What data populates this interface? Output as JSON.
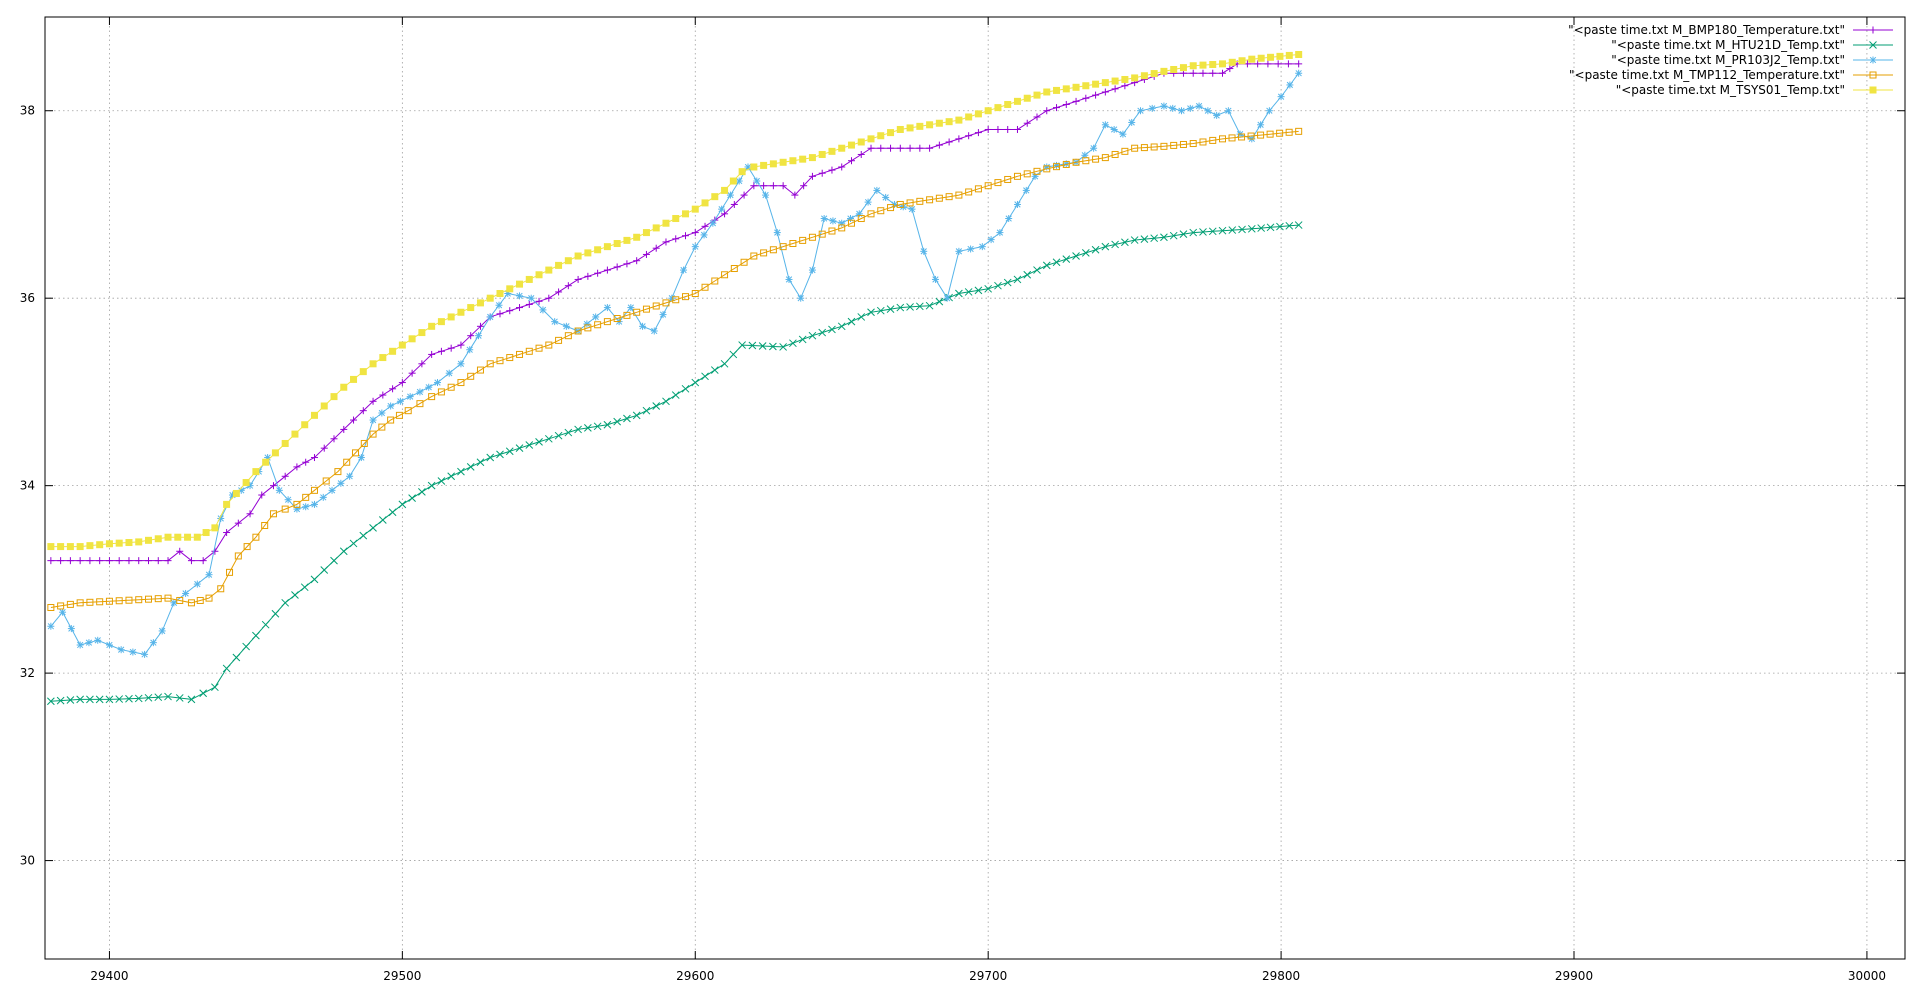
{
  "chart_data": {
    "type": "line",
    "title": "",
    "xlabel": "",
    "ylabel": "",
    "xlim": [
      29378,
      30013
    ],
    "ylim": [
      28.95,
      39.0
    ],
    "grid": true,
    "legend": "top-right",
    "x_ticks": [
      29400,
      29500,
      29600,
      29700,
      29800,
      29900,
      30000
    ],
    "y_ticks": [
      30,
      32,
      34,
      36,
      38
    ],
    "x_tick_labels": [
      "29400",
      "29500",
      "29600",
      "29700",
      "29800",
      "29900",
      "30000"
    ],
    "y_tick_labels": [
      "30",
      "32",
      "34",
      "36",
      "38"
    ],
    "series": [
      {
        "name": "\"<paste time.txt M_BMP180_Temperature.txt\"",
        "color": "#9400d3",
        "marker": "plus",
        "points": [
          [
            29380,
            33.2
          ],
          [
            29400,
            33.2
          ],
          [
            29420,
            33.2
          ],
          [
            29424,
            33.3
          ],
          [
            29428,
            33.2
          ],
          [
            29432,
            33.2
          ],
          [
            29436,
            33.3
          ],
          [
            29440,
            33.5
          ],
          [
            29448,
            33.7
          ],
          [
            29452,
            33.9
          ],
          [
            29456,
            34.0
          ],
          [
            29460,
            34.1
          ],
          [
            29464,
            34.2
          ],
          [
            29470,
            34.3
          ],
          [
            29480,
            34.6
          ],
          [
            29490,
            34.9
          ],
          [
            29500,
            35.1
          ],
          [
            29510,
            35.4
          ],
          [
            29520,
            35.5
          ],
          [
            29530,
            35.8
          ],
          [
            29540,
            35.9
          ],
          [
            29550,
            36.0
          ],
          [
            29560,
            36.2
          ],
          [
            29570,
            36.3
          ],
          [
            29580,
            36.4
          ],
          [
            29590,
            36.6
          ],
          [
            29600,
            36.7
          ],
          [
            29610,
            36.9
          ],
          [
            29620,
            37.2
          ],
          [
            29630,
            37.2
          ],
          [
            29634,
            37.1
          ],
          [
            29640,
            37.3
          ],
          [
            29650,
            37.4
          ],
          [
            29660,
            37.6
          ],
          [
            29680,
            37.6
          ],
          [
            29690,
            37.7
          ],
          [
            29700,
            37.8
          ],
          [
            29710,
            37.8
          ],
          [
            29720,
            38.0
          ],
          [
            29730,
            38.1
          ],
          [
            29740,
            38.2
          ],
          [
            29750,
            38.3
          ],
          [
            29760,
            38.4
          ],
          [
            29780,
            38.4
          ],
          [
            29785,
            38.5
          ],
          [
            29806,
            38.5
          ]
        ]
      },
      {
        "name": "\"<paste time.txt M_HTU21D_Temp.txt\"",
        "color": "#009e73",
        "marker": "x",
        "points": [
          [
            29380,
            31.7
          ],
          [
            29390,
            31.72
          ],
          [
            29400,
            31.72
          ],
          [
            29410,
            31.73
          ],
          [
            29420,
            31.75
          ],
          [
            29428,
            31.72
          ],
          [
            29436,
            31.85
          ],
          [
            29440,
            32.05
          ],
          [
            29450,
            32.4
          ],
          [
            29460,
            32.75
          ],
          [
            29470,
            33.0
          ],
          [
            29480,
            33.3
          ],
          [
            29490,
            33.55
          ],
          [
            29500,
            33.8
          ],
          [
            29510,
            34.0
          ],
          [
            29520,
            34.15
          ],
          [
            29530,
            34.3
          ],
          [
            29540,
            34.4
          ],
          [
            29550,
            34.5
          ],
          [
            29560,
            34.6
          ],
          [
            29570,
            34.65
          ],
          [
            29580,
            34.75
          ],
          [
            29590,
            34.9
          ],
          [
            29600,
            35.1
          ],
          [
            29610,
            35.3
          ],
          [
            29616,
            35.5
          ],
          [
            29630,
            35.48
          ],
          [
            29640,
            35.6
          ],
          [
            29650,
            35.7
          ],
          [
            29660,
            35.85
          ],
          [
            29670,
            35.9
          ],
          [
            29680,
            35.92
          ],
          [
            29690,
            36.05
          ],
          [
            29700,
            36.1
          ],
          [
            29710,
            36.2
          ],
          [
            29720,
            36.35
          ],
          [
            29730,
            36.45
          ],
          [
            29740,
            36.55
          ],
          [
            29750,
            36.62
          ],
          [
            29760,
            36.65
          ],
          [
            29770,
            36.7
          ],
          [
            29780,
            36.72
          ],
          [
            29790,
            36.74
          ],
          [
            29806,
            36.78
          ]
        ]
      },
      {
        "name": "\"<paste time.txt M_PR103J2_Temp.txt\"",
        "color": "#56b4e9",
        "marker": "star",
        "points": [
          [
            29380,
            32.5
          ],
          [
            29384,
            32.65
          ],
          [
            29390,
            32.3
          ],
          [
            29396,
            32.35
          ],
          [
            29404,
            32.25
          ],
          [
            29412,
            32.2
          ],
          [
            29418,
            32.45
          ],
          [
            29422,
            32.75
          ],
          [
            29430,
            32.95
          ],
          [
            29434,
            33.05
          ],
          [
            29438,
            33.65
          ],
          [
            29442,
            33.9
          ],
          [
            29448,
            34.0
          ],
          [
            29454,
            34.3
          ],
          [
            29458,
            33.95
          ],
          [
            29464,
            33.75
          ],
          [
            29470,
            33.8
          ],
          [
            29476,
            33.95
          ],
          [
            29482,
            34.1
          ],
          [
            29486,
            34.3
          ],
          [
            29490,
            34.7
          ],
          [
            29496,
            34.85
          ],
          [
            29506,
            35.0
          ],
          [
            29512,
            35.1
          ],
          [
            29520,
            35.3
          ],
          [
            29526,
            35.6
          ],
          [
            29530,
            35.8
          ],
          [
            29536,
            36.05
          ],
          [
            29544,
            36.0
          ],
          [
            29552,
            35.75
          ],
          [
            29560,
            35.65
          ],
          [
            29566,
            35.8
          ],
          [
            29570,
            35.9
          ],
          [
            29574,
            35.75
          ],
          [
            29578,
            35.9
          ],
          [
            29582,
            35.7
          ],
          [
            29586,
            35.65
          ],
          [
            29592,
            36.0
          ],
          [
            29596,
            36.3
          ],
          [
            29600,
            36.55
          ],
          [
            29606,
            36.8
          ],
          [
            29612,
            37.1
          ],
          [
            29618,
            37.4
          ],
          [
            29624,
            37.1
          ],
          [
            29628,
            36.7
          ],
          [
            29632,
            36.2
          ],
          [
            29636,
            36.0
          ],
          [
            29640,
            36.3
          ],
          [
            29644,
            36.85
          ],
          [
            29650,
            36.8
          ],
          [
            29656,
            36.9
          ],
          [
            29662,
            37.15
          ],
          [
            29668,
            37.0
          ],
          [
            29674,
            36.95
          ],
          [
            29678,
            36.5
          ],
          [
            29682,
            36.2
          ],
          [
            29686,
            36.0
          ],
          [
            29690,
            36.5
          ],
          [
            29698,
            36.55
          ],
          [
            29704,
            36.7
          ],
          [
            29710,
            37.0
          ],
          [
            29716,
            37.3
          ],
          [
            29720,
            37.4
          ],
          [
            29730,
            37.45
          ],
          [
            29736,
            37.6
          ],
          [
            29740,
            37.85
          ],
          [
            29746,
            37.75
          ],
          [
            29752,
            38.0
          ],
          [
            29760,
            38.05
          ],
          [
            29766,
            38.0
          ],
          [
            29772,
            38.05
          ],
          [
            29778,
            37.95
          ],
          [
            29782,
            38.0
          ],
          [
            29786,
            37.75
          ],
          [
            29790,
            37.7
          ],
          [
            29796,
            38.0
          ],
          [
            29800,
            38.15
          ],
          [
            29806,
            38.4
          ]
        ]
      },
      {
        "name": "\"<paste time.txt M_TMP112_Temperature.txt\"",
        "color": "#e69f00",
        "marker": "square",
        "points": [
          [
            29380,
            32.7
          ],
          [
            29390,
            32.75
          ],
          [
            29420,
            32.8
          ],
          [
            29428,
            32.75
          ],
          [
            29434,
            32.8
          ],
          [
            29438,
            32.9
          ],
          [
            29444,
            33.25
          ],
          [
            29450,
            33.45
          ],
          [
            29456,
            33.7
          ],
          [
            29464,
            33.8
          ],
          [
            29470,
            33.95
          ],
          [
            29478,
            34.15
          ],
          [
            29484,
            34.35
          ],
          [
            29490,
            34.55
          ],
          [
            29496,
            34.7
          ],
          [
            29502,
            34.8
          ],
          [
            29510,
            34.95
          ],
          [
            29520,
            35.1
          ],
          [
            29530,
            35.3
          ],
          [
            29540,
            35.4
          ],
          [
            29550,
            35.5
          ],
          [
            29560,
            35.65
          ],
          [
            29570,
            35.75
          ],
          [
            29580,
            35.85
          ],
          [
            29590,
            35.95
          ],
          [
            29600,
            36.05
          ],
          [
            29610,
            36.25
          ],
          [
            29620,
            36.45
          ],
          [
            29630,
            36.55
          ],
          [
            29640,
            36.65
          ],
          [
            29650,
            36.75
          ],
          [
            29660,
            36.9
          ],
          [
            29670,
            37.0
          ],
          [
            29680,
            37.05
          ],
          [
            29690,
            37.1
          ],
          [
            29700,
            37.2
          ],
          [
            29710,
            37.3
          ],
          [
            29720,
            37.38
          ],
          [
            29730,
            37.45
          ],
          [
            29740,
            37.5
          ],
          [
            29750,
            37.6
          ],
          [
            29760,
            37.62
          ],
          [
            29770,
            37.65
          ],
          [
            29780,
            37.7
          ],
          [
            29806,
            37.78
          ]
        ]
      },
      {
        "name": "\"<paste time.txt M_TSYS01_Temp.txt\"",
        "color": "#f0e442",
        "marker": "filled-square",
        "points": [
          [
            29380,
            33.35
          ],
          [
            29390,
            33.35
          ],
          [
            29400,
            33.38
          ],
          [
            29410,
            33.4
          ],
          [
            29420,
            33.45
          ],
          [
            29430,
            33.45
          ],
          [
            29436,
            33.55
          ],
          [
            29440,
            33.8
          ],
          [
            29450,
            34.15
          ],
          [
            29460,
            34.45
          ],
          [
            29470,
            34.75
          ],
          [
            29480,
            35.05
          ],
          [
            29490,
            35.3
          ],
          [
            29500,
            35.5
          ],
          [
            29510,
            35.7
          ],
          [
            29520,
            35.85
          ],
          [
            29530,
            36.0
          ],
          [
            29540,
            36.15
          ],
          [
            29550,
            36.3
          ],
          [
            29560,
            36.45
          ],
          [
            29570,
            36.55
          ],
          [
            29580,
            36.65
          ],
          [
            29590,
            36.8
          ],
          [
            29600,
            36.95
          ],
          [
            29610,
            37.15
          ],
          [
            29616,
            37.35
          ],
          [
            29620,
            37.4
          ],
          [
            29630,
            37.45
          ],
          [
            29640,
            37.5
          ],
          [
            29650,
            37.6
          ],
          [
            29660,
            37.7
          ],
          [
            29670,
            37.8
          ],
          [
            29680,
            37.85
          ],
          [
            29690,
            37.9
          ],
          [
            29700,
            38.0
          ],
          [
            29710,
            38.1
          ],
          [
            29720,
            38.2
          ],
          [
            29730,
            38.25
          ],
          [
            29740,
            38.3
          ],
          [
            29750,
            38.35
          ],
          [
            29760,
            38.42
          ],
          [
            29770,
            38.48
          ],
          [
            29780,
            38.5
          ],
          [
            29790,
            38.55
          ],
          [
            29806,
            38.6
          ]
        ]
      }
    ]
  }
}
